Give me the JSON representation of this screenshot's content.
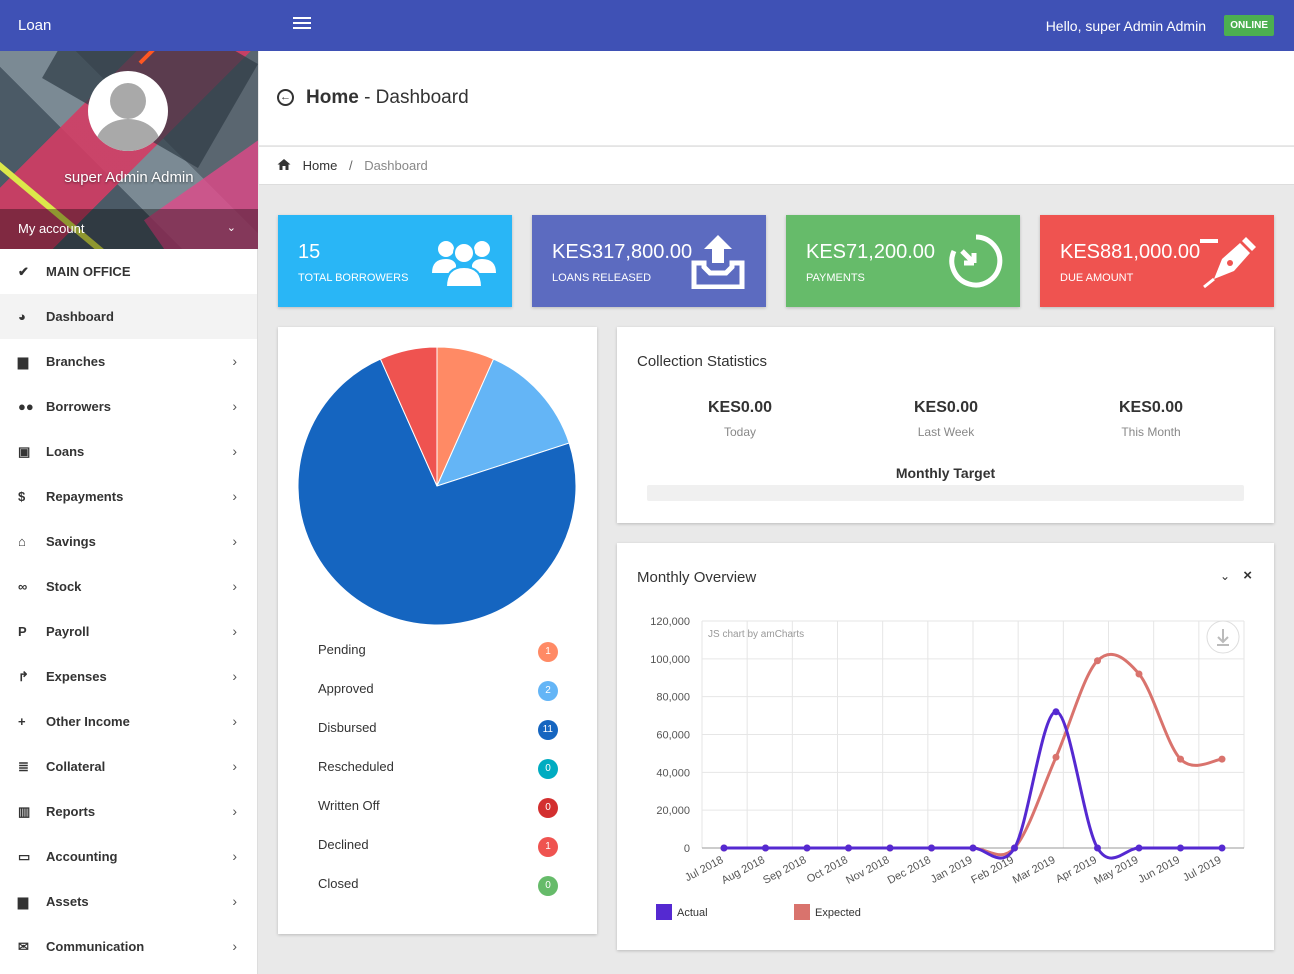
{
  "topbar": {
    "brand": "Loan",
    "greeting": "Hello, super Admin Admin",
    "status": "ONLINE"
  },
  "sidebar": {
    "user_name": "super Admin Admin",
    "my_account": "My account",
    "items": [
      {
        "label": "MAIN OFFICE",
        "icon": "check-icon"
      },
      {
        "label": "Dashboard",
        "icon": "palette-icon"
      },
      {
        "label": "Branches",
        "icon": "briefcase-icon"
      },
      {
        "label": "Borrowers",
        "icon": "users-icon"
      },
      {
        "label": "Loans",
        "icon": "money-icon"
      },
      {
        "label": "Repayments",
        "icon": "dollar-icon"
      },
      {
        "label": "Savings",
        "icon": "bank-icon"
      },
      {
        "label": "Stock",
        "icon": "bicycle-icon"
      },
      {
        "label": "Payroll",
        "icon": "paypal-icon"
      },
      {
        "label": "Expenses",
        "icon": "share-icon"
      },
      {
        "label": "Other Income",
        "icon": "plus-icon"
      },
      {
        "label": "Collateral",
        "icon": "list-icon"
      },
      {
        "label": "Reports",
        "icon": "bar-chart-icon"
      },
      {
        "label": "Accounting",
        "icon": "credit-card-icon"
      },
      {
        "label": "Assets",
        "icon": "briefcase-icon"
      },
      {
        "label": "Communication",
        "icon": "envelope-icon"
      }
    ]
  },
  "header": {
    "title_bold": "Home",
    "title_rest": " - Dashboard"
  },
  "breadcrumb": {
    "home": "Home",
    "current": "Dashboard"
  },
  "cards": [
    {
      "value": "15",
      "label": "TOTAL BORROWERS",
      "color": "#29b6f6",
      "icon": "users-icon"
    },
    {
      "value": "KES317,800.00",
      "label": "LOANS RELEASED",
      "color": "#5c6bc0",
      "icon": "inbox-upload-icon"
    },
    {
      "value": "KES71,200.00",
      "label": "PAYMENTS",
      "color": "#66bb6a",
      "icon": "clock-arrow-icon"
    },
    {
      "value": "KES881,000.00",
      "label": "DUE AMOUNT",
      "color": "#ef5350",
      "icon": "pen-icon"
    }
  ],
  "loan_status": [
    {
      "label": "Pending",
      "count": "1",
      "color": "#ff8a65"
    },
    {
      "label": "Approved",
      "count": "2",
      "color": "#64b5f6"
    },
    {
      "label": "Disbursed",
      "count": "11",
      "color": "#1565c0"
    },
    {
      "label": "Rescheduled",
      "count": "0",
      "color": "#00acc1"
    },
    {
      "label": "Written Off",
      "count": "0",
      "color": "#d32f2f"
    },
    {
      "label": "Declined",
      "count": "1",
      "color": "#ef5350"
    },
    {
      "label": "Closed",
      "count": "0",
      "color": "#66bb6a"
    }
  ],
  "collection": {
    "title": "Collection Statistics",
    "stats": [
      {
        "value": "KES0.00",
        "label": "Today"
      },
      {
        "value": "KES0.00",
        "label": "Last Week"
      },
      {
        "value": "KES0.00",
        "label": "This Month"
      }
    ],
    "target_label": "Monthly Target",
    "target_progress": 0
  },
  "overview": {
    "title": "Monthly Overview",
    "watermark": "JS chart by amCharts"
  },
  "chart_data": [
    {
      "type": "pie",
      "categories": [
        "Pending",
        "Approved",
        "Disbursed",
        "Declined"
      ],
      "values": [
        1,
        2,
        11,
        1
      ],
      "colors": [
        "#ff8a65",
        "#64b5f6",
        "#1565c0",
        "#ef5350"
      ]
    },
    {
      "type": "line",
      "title": "Monthly Overview",
      "x": [
        "Jul 2018",
        "Aug 2018",
        "Sep 2018",
        "Oct 2018",
        "Nov 2018",
        "Dec 2018",
        "Jan 2019",
        "Feb 2019",
        "Mar 2019",
        "Apr 2019",
        "May 2019",
        "Jun 2019",
        "Jul 2019"
      ],
      "series": [
        {
          "name": "Actual",
          "color": "#5529d1",
          "values": [
            0,
            0,
            0,
            0,
            0,
            0,
            0,
            0,
            72000,
            0,
            0,
            0,
            0
          ]
        },
        {
          "name": "Expected",
          "color": "#d9736d",
          "values": [
            0,
            0,
            0,
            0,
            0,
            0,
            0,
            0,
            48000,
            99000,
            92000,
            47000,
            47000
          ]
        }
      ],
      "yticks": [
        "0",
        "20,000",
        "40,000",
        "60,000",
        "80,000",
        "100,000",
        "120,000"
      ],
      "ylim": [
        0,
        120000
      ],
      "grid": true,
      "legend": "bottom-left"
    }
  ]
}
